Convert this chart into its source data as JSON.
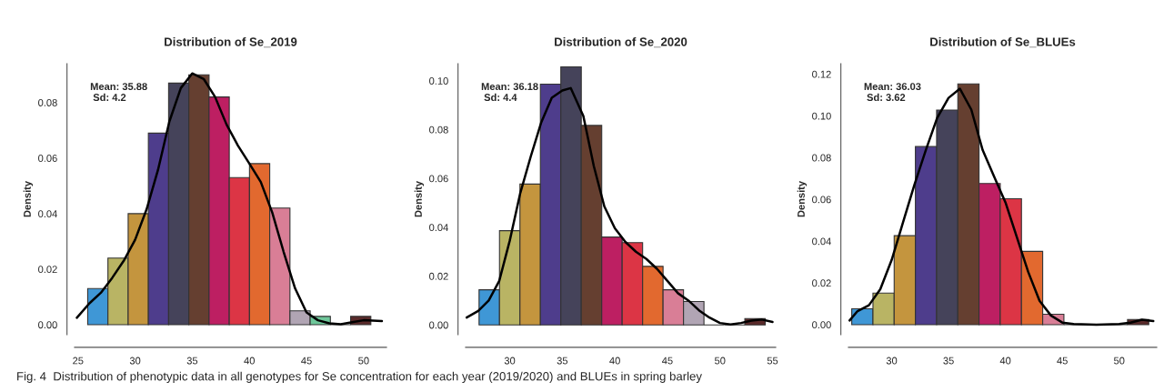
{
  "chart_data": [
    {
      "type": "histogram",
      "title": "Distribution of Se_2019",
      "ylabel": "Density",
      "bins": [
        25.85,
        27.62,
        29.39,
        31.16,
        32.93,
        34.7,
        36.47,
        38.24,
        40.01,
        41.78,
        43.55,
        45.32,
        47.09,
        48.86,
        50.63
      ],
      "values": [
        0.013,
        0.024,
        0.04,
        0.069,
        0.087,
        0.09,
        0.082,
        0.053,
        0.058,
        0.042,
        0.005,
        0.003,
        0,
        0.003
      ],
      "colors": [
        "#3f97d6",
        "#b9b464",
        "#c4953e",
        "#4e3d8c",
        "#45435a",
        "#653f30",
        "#bd1f62",
        "#dc3545",
        "#e2692f",
        "#d97e96",
        "#b1a5b4",
        "#6ec79a",
        "#333333",
        "#5a2a2a"
      ],
      "series": [
        {
          "type": "line",
          "color": "#000000",
          "x": [
            24.9,
            26,
            27,
            28,
            29,
            30,
            31,
            32,
            33,
            34,
            35,
            36,
            37,
            38,
            39,
            40,
            41,
            42,
            43,
            44,
            45,
            46,
            47,
            48,
            49,
            50,
            51.6
          ],
          "values": [
            0.0025,
            0.0077,
            0.0115,
            0.0169,
            0.023,
            0.0306,
            0.0415,
            0.0557,
            0.0732,
            0.0852,
            0.0905,
            0.0885,
            0.082,
            0.0721,
            0.0645,
            0.058,
            0.0514,
            0.0404,
            0.0262,
            0.0131,
            0.0044,
            0.0016,
            0.0005,
            0.0002,
            0.0009,
            0.0016,
            0.0013
          ]
        }
      ],
      "xlim": [
        24.7,
        52
      ],
      "ylim": [
        -0.0036,
        0.094
      ],
      "xticks": [
        25,
        30,
        35,
        40,
        45,
        50
      ],
      "yticks": [
        {
          "value": 0,
          "label": "0.00"
        },
        {
          "value": 0.02,
          "label": "0.02"
        },
        {
          "value": 0.04,
          "label": "0.04"
        },
        {
          "value": 0.06,
          "label": "0.06"
        },
        {
          "value": 0.08,
          "label": "0.08"
        }
      ],
      "annotations": [
        "Mean: 35.88\n Sd: 4.2"
      ]
    },
    {
      "type": "histogram",
      "title": "Distribution of Se_2020",
      "ylabel": "Density",
      "bins": [
        27.08,
        29.025,
        30.97,
        32.915,
        34.86,
        36.805,
        38.75,
        40.695,
        42.64,
        44.585,
        46.53,
        48.475,
        50.42,
        52.365,
        54.31
      ],
      "values": [
        0.0144,
        0.0386,
        0.0577,
        0.0986,
        0.1057,
        0.0817,
        0.036,
        0.0337,
        0.024,
        0.0144,
        0.0096,
        0,
        0,
        0.0026
      ],
      "colors": [
        "#3f97d6",
        "#b9b464",
        "#c4953e",
        "#4e3d8c",
        "#45435a",
        "#653f30",
        "#bd1f62",
        "#dc3545",
        "#e2692f",
        "#d97e96",
        "#b1a5b4",
        "#333333",
        "#333333",
        "#5a2a2a"
      ],
      "series": [
        {
          "type": "line",
          "color": "#000000",
          "x": [
            25.9,
            27,
            28,
            29,
            30,
            31,
            32,
            33,
            34,
            35,
            35.8,
            37,
            38,
            39,
            40,
            41,
            42,
            43,
            44,
            45,
            46,
            47,
            48,
            49,
            50,
            51,
            52,
            53,
            54,
            55
          ],
          "values": [
            0.003,
            0.0057,
            0.01,
            0.018,
            0.0345,
            0.054,
            0.069,
            0.083,
            0.093,
            0.096,
            0.097,
            0.0856,
            0.065,
            0.0485,
            0.0396,
            0.034,
            0.03,
            0.027,
            0.023,
            0.018,
            0.013,
            0.01,
            0.006,
            0.003,
            0.0008,
            0.0002,
            0.0008,
            0.0018,
            0.0022,
            0.0012
          ]
        }
      ],
      "xlim": [
        25.8,
        55.3
      ],
      "ylim": [
        -0.004,
        0.107
      ],
      "xticks": [
        30,
        35,
        40,
        45,
        50,
        55
      ],
      "yticks": [
        {
          "value": 0,
          "label": "0.00"
        },
        {
          "value": 0.02,
          "label": "0.02"
        },
        {
          "value": 0.04,
          "label": "0.04"
        },
        {
          "value": 0.06,
          "label": "0.06"
        },
        {
          "value": 0.08,
          "label": "0.08"
        },
        {
          "value": 0.1,
          "label": "0.10"
        }
      ],
      "annotations": [
        "Mean: 36.18\n Sd: 4.4"
      ]
    },
    {
      "type": "histogram",
      "title": "Distribution of Se_BLUEs",
      "ylabel": "Density",
      "bins": [
        26.49,
        28.355,
        30.22,
        32.085,
        33.95,
        35.815,
        37.68,
        39.545,
        41.41,
        43.275,
        45.14,
        47.005,
        48.87,
        50.735,
        52.6
      ],
      "values": [
        0.0076,
        0.0151,
        0.0426,
        0.0853,
        0.1028,
        0.1153,
        0.0676,
        0.0603,
        0.0351,
        0.005,
        0,
        0,
        0,
        0.0025
      ],
      "colors": [
        "#3f97d6",
        "#b9b464",
        "#c4953e",
        "#4e3d8c",
        "#45435a",
        "#653f30",
        "#bd1f62",
        "#dc3545",
        "#e2692f",
        "#d97e96",
        "#333333",
        "#333333",
        "#333333",
        "#5a2a2a"
      ],
      "series": [
        {
          "type": "line",
          "color": "#000000",
          "x": [
            26.3,
            27,
            28,
            29,
            30,
            31,
            32,
            33,
            34,
            35,
            36,
            37,
            38,
            39,
            40,
            41,
            42,
            43,
            44,
            45,
            46,
            48,
            50,
            51,
            52,
            53
          ],
          "values": [
            0.002,
            0.0065,
            0.0093,
            0.017,
            0.031,
            0.049,
            0.067,
            0.0836,
            0.099,
            0.1086,
            0.113,
            0.103,
            0.0836,
            0.071,
            0.0586,
            0.042,
            0.0253,
            0.0114,
            0.0044,
            0.001,
            0.0003,
            0,
            0.0003,
            0.001,
            0.0024,
            0.0017
          ]
        }
      ],
      "xlim": [
        26.2,
        53.3
      ],
      "ylim": [
        -0.0048,
        0.125
      ],
      "xticks": [
        30,
        35,
        40,
        45,
        50
      ],
      "yticks": [
        {
          "value": 0,
          "label": "0.00"
        },
        {
          "value": 0.02,
          "label": "0.02"
        },
        {
          "value": 0.04,
          "label": "0.04"
        },
        {
          "value": 0.06,
          "label": "0.06"
        },
        {
          "value": 0.08,
          "label": "0.08"
        },
        {
          "value": 0.1,
          "label": "0.10"
        },
        {
          "value": 0.12,
          "label": "0.12"
        }
      ],
      "annotations": [
        "Mean: 36.03\n Sd: 3.62",
        "Fig. 4  Distribution of phenotypic data in all genotypes for Se concentration for each year (2019/2020) and BLUEs in spring barley"
      ]
    }
  ]
}
